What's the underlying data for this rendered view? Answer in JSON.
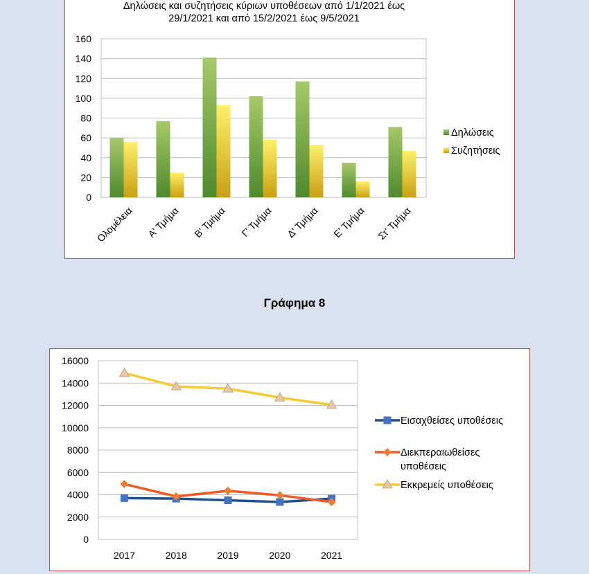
{
  "chart_data": [
    {
      "type": "bar",
      "title_lines": [
        "Δηλώσεις και συζητήσεις κύριων υποθέσεων από 1/1/2021 έως",
        "29/1/2021 και από 15/2/2021 έως 9/5/2021"
      ],
      "categories": [
        "Ολομέλεια",
        "Α' Τμήμα",
        "Β' Τμήμα",
        "Γ' Τμήμα",
        "Δ' Τμήμα",
        "Ε' Τμήμα",
        "Στ' Τμήμα"
      ],
      "series": [
        {
          "name": "Δηλώσεις",
          "values": [
            60,
            77,
            141,
            102,
            117,
            35,
            71
          ],
          "color": "#77a33b"
        },
        {
          "name": "Συζητήσεις",
          "values": [
            56,
            25,
            93,
            58,
            53,
            16,
            47
          ],
          "color": "#f0d731"
        }
      ],
      "ylim": [
        0,
        160
      ],
      "yticks": [
        "0",
        "20",
        "40",
        "60",
        "80",
        "100",
        "120",
        "140",
        "160"
      ],
      "grid": true,
      "legend": "right"
    },
    {
      "type": "line",
      "categories": [
        "2017",
        "2018",
        "2019",
        "2020",
        "2021"
      ],
      "series": [
        {
          "name": "Εισαχθείσες υποθέσεις",
          "values": [
            3700,
            3650,
            3500,
            3350,
            3650
          ],
          "color": "#1f4e8c",
          "marker": "square",
          "marker_color": "#4472c4"
        },
        {
          "name_lines": [
            "Διεκπεραιωθείσες",
            "υποθέσεις"
          ],
          "values": [
            4950,
            3850,
            4350,
            3950,
            3350
          ],
          "color": "#f05a23",
          "marker": "diamond",
          "marker_color": "#f07b32"
        },
        {
          "name": "Εκκρεμείς υποθέσεις",
          "values": [
            14900,
            13700,
            13500,
            12700,
            12050
          ],
          "color": "#f5cb2f",
          "marker": "triangle",
          "marker_color": "#e8c7a6"
        }
      ],
      "ylim": [
        0,
        16000
      ],
      "yticks": [
        "0",
        "2000",
        "4000",
        "6000",
        "8000",
        "10000",
        "12000",
        "14000",
        "16000"
      ],
      "grid": true,
      "legend": "right"
    }
  ],
  "caption": "Γράφημα 8"
}
